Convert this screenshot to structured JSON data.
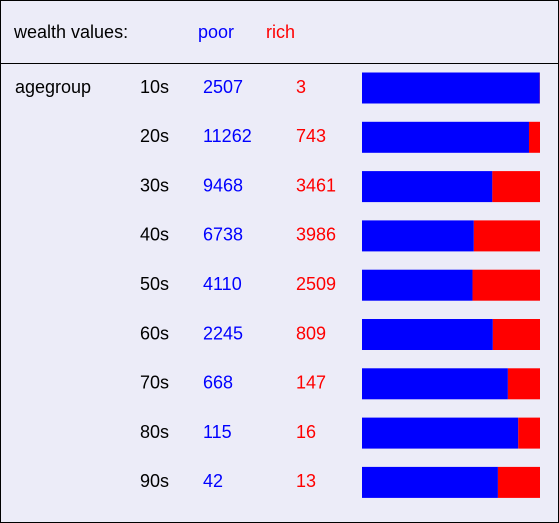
{
  "header": {
    "title": "wealth values:",
    "legend": [
      {
        "name": "poor",
        "color": "#0000ff"
      },
      {
        "name": "rich",
        "color": "#ff0000"
      }
    ]
  },
  "table": {
    "row_label": "agegroup",
    "rows": [
      {
        "group": "10s",
        "poor": 2507,
        "rich": 3
      },
      {
        "group": "20s",
        "poor": 11262,
        "rich": 743
      },
      {
        "group": "30s",
        "poor": 9468,
        "rich": 3461
      },
      {
        "group": "40s",
        "poor": 6738,
        "rich": 3986
      },
      {
        "group": "50s",
        "poor": 4110,
        "rich": 2509
      },
      {
        "group": "60s",
        "poor": 2245,
        "rich": 809
      },
      {
        "group": "70s",
        "poor": 668,
        "rich": 147
      },
      {
        "group": "80s",
        "poor": 115,
        "rich": 16
      },
      {
        "group": "90s",
        "poor": 42,
        "rich": 13
      }
    ]
  }
}
